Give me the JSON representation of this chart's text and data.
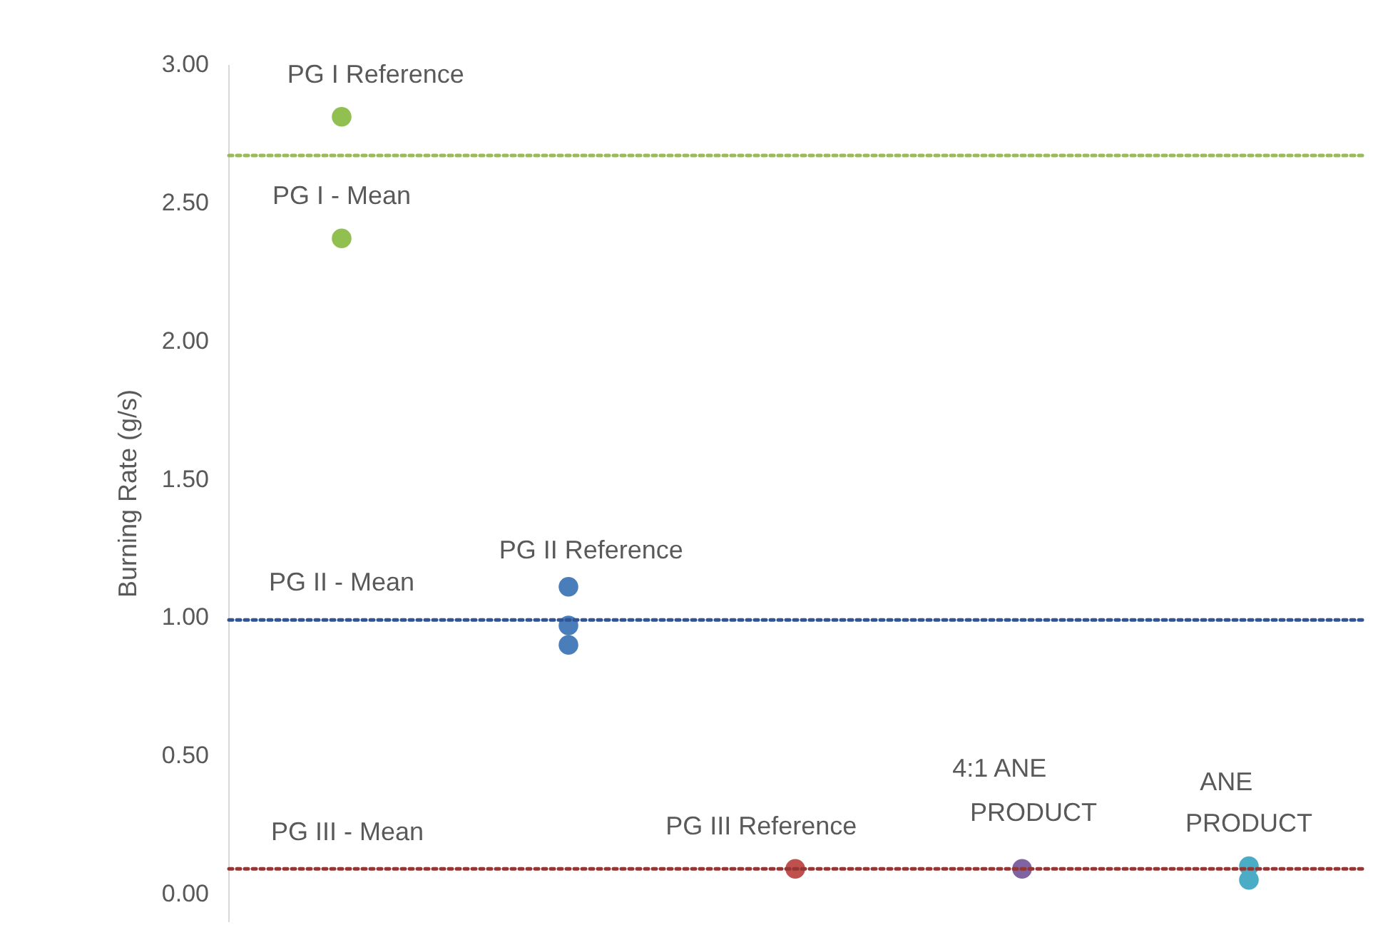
{
  "chart_data": {
    "type": "scatter",
    "ylabel": "Burning Rate (g/s)",
    "categories": [
      null,
      null,
      null,
      null,
      null
    ],
    "ylim": [
      -0.1,
      3
    ],
    "yticks": [
      {
        "value": 0,
        "label": "0.00"
      },
      {
        "value": 0.5,
        "label": "0.50"
      },
      {
        "value": 1,
        "label": "1.00"
      },
      {
        "value": 1.5,
        "label": "1.50"
      },
      {
        "value": 2,
        "label": "2.00"
      },
      {
        "value": 2.5,
        "label": "2.50"
      },
      {
        "value": 3,
        "label": "3.00"
      }
    ],
    "tick_labels": "y",
    "grid": false,
    "marker": "circle",
    "series": [
      {
        "colors": [
          "#92c050",
          "#4a7ebb",
          "#c0504d",
          "#8064a2",
          "#4bacc6"
        ],
        "values": [
          2.81,
          1.11,
          null,
          null,
          0.1
        ]
      },
      {
        "colors": [
          "#92c050",
          "#4a7ebb",
          "#c0504d",
          "#8064a2",
          "#4bacc6"
        ],
        "values": [
          2.37,
          0.97,
          0.09,
          0.09,
          0.05
        ]
      },
      {
        "colors": [
          "#92c050",
          "#4a7ebb",
          "#c0504d",
          "#8064a2",
          "#4bacc6"
        ],
        "values": [
          null,
          0.9,
          null,
          null,
          null
        ]
      }
    ],
    "ref_lines": [
      {
        "axis": "y",
        "value": 2.67,
        "color": "#9bbb59",
        "line_style": "dotted"
      },
      {
        "axis": "y",
        "value": 0.99,
        "color": "#2f5597",
        "line_style": "dotted"
      },
      {
        "axis": "y",
        "value": 0.09,
        "color": "#943634",
        "line_style": "dotted"
      }
    ],
    "annotations": [
      "PG I Reference",
      "PG I - Mean",
      "PG II Reference",
      "PG II - Mean",
      "PG III - Mean",
      "PG III Reference",
      "4:1 ANE",
      "PRODUCT",
      "ANE",
      "PRODUCT"
    ]
  }
}
